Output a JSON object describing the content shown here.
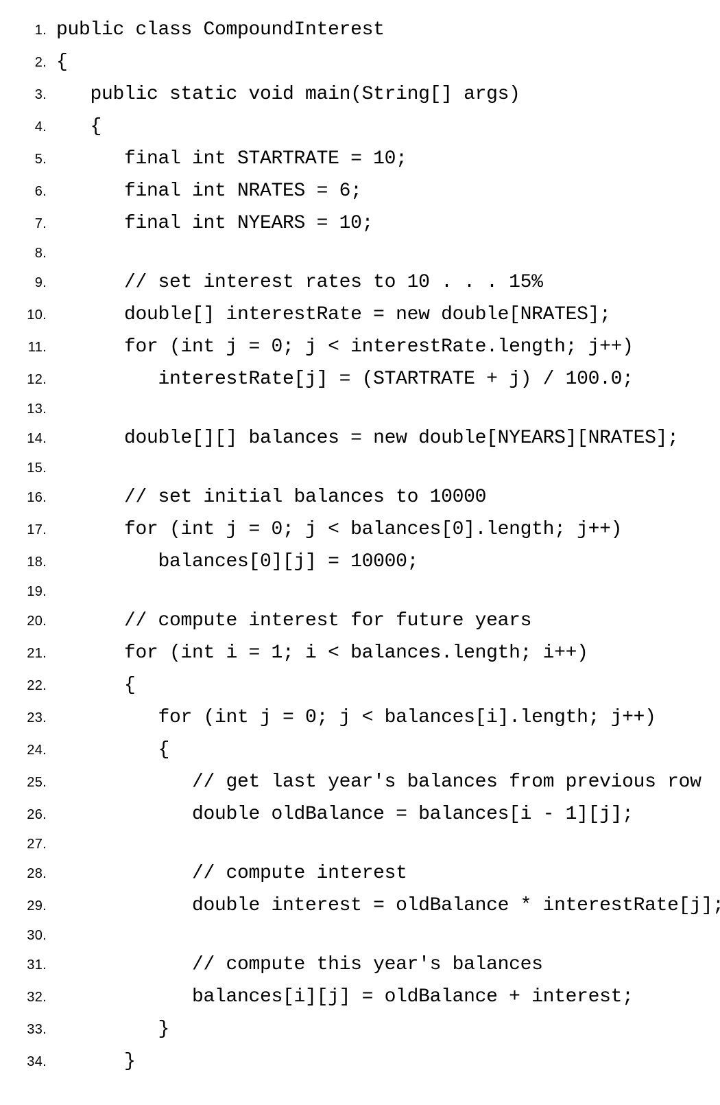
{
  "lines": [
    {
      "n": "1.",
      "code": "public class CompoundInterest"
    },
    {
      "n": "2.",
      "code": "{"
    },
    {
      "n": "3.",
      "code": "   public static void main(String[] args)"
    },
    {
      "n": "4.",
      "code": "   {"
    },
    {
      "n": "5.",
      "code": "      final int STARTRATE = 10;"
    },
    {
      "n": "6.",
      "code": "      final int NRATES = 6;"
    },
    {
      "n": "7.",
      "code": "      final int NYEARS = 10;"
    },
    {
      "n": "8.",
      "code": ""
    },
    {
      "n": "9.",
      "code": "      // set interest rates to 10 . . . 15%"
    },
    {
      "n": "10.",
      "code": "      double[] interestRate = new double[NRATES];"
    },
    {
      "n": "11.",
      "code": "      for (int j = 0; j < interestRate.length; j++)"
    },
    {
      "n": "12.",
      "code": "         interestRate[j] = (STARTRATE + j) / 100.0;"
    },
    {
      "n": "13.",
      "code": ""
    },
    {
      "n": "14.",
      "code": "      double[][] balances = new double[NYEARS][NRATES];"
    },
    {
      "n": "15.",
      "code": ""
    },
    {
      "n": "16.",
      "code": "      // set initial balances to 10000"
    },
    {
      "n": "17.",
      "code": "      for (int j = 0; j < balances[0].length; j++)"
    },
    {
      "n": "18.",
      "code": "         balances[0][j] = 10000;"
    },
    {
      "n": "19.",
      "code": ""
    },
    {
      "n": "20.",
      "code": "      // compute interest for future years"
    },
    {
      "n": "21.",
      "code": "      for (int i = 1; i < balances.length; i++)"
    },
    {
      "n": "22.",
      "code": "      {"
    },
    {
      "n": "23.",
      "code": "         for (int j = 0; j < balances[i].length; j++)"
    },
    {
      "n": "24.",
      "code": "         {"
    },
    {
      "n": "25.",
      "code": "            // get last year's balances from previous row"
    },
    {
      "n": "26.",
      "code": "            double oldBalance = balances[i - 1][j];"
    },
    {
      "n": "27.",
      "code": ""
    },
    {
      "n": "28.",
      "code": "            // compute interest"
    },
    {
      "n": "29.",
      "code": "            double interest = oldBalance * interestRate[j];"
    },
    {
      "n": "30.",
      "code": ""
    },
    {
      "n": "31.",
      "code": "            // compute this year's balances"
    },
    {
      "n": "32.",
      "code": "            balances[i][j] = oldBalance + interest;"
    },
    {
      "n": "33.",
      "code": "         }"
    },
    {
      "n": "34.",
      "code": "      }"
    }
  ]
}
